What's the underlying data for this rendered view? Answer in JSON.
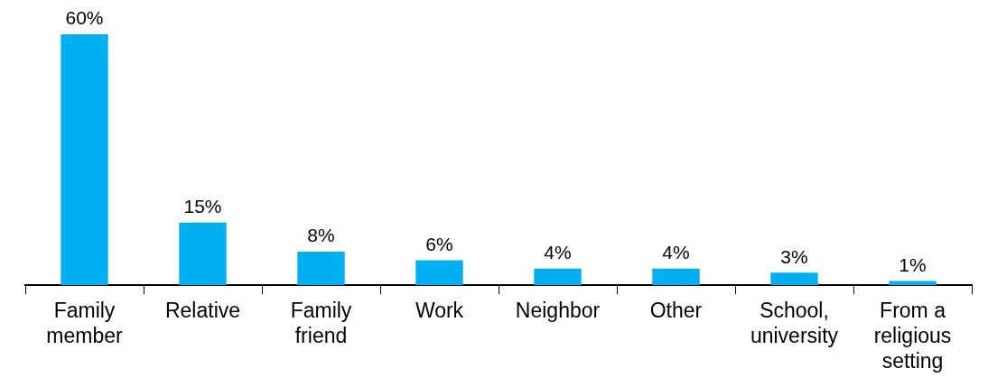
{
  "chart_data": {
    "type": "bar",
    "categories": [
      "Family member",
      "Relative",
      "Family friend",
      "Work",
      "Neighbor",
      "Other",
      "School, university",
      "From a religious setting"
    ],
    "values": [
      60,
      15,
      8,
      6,
      4,
      4,
      3,
      1
    ],
    "value_labels": [
      "60%",
      "15%",
      "8%",
      "6%",
      "4%",
      "4%",
      "3%",
      "1%"
    ],
    "color": "#00b0f0",
    "grid": false,
    "legend": false
  }
}
